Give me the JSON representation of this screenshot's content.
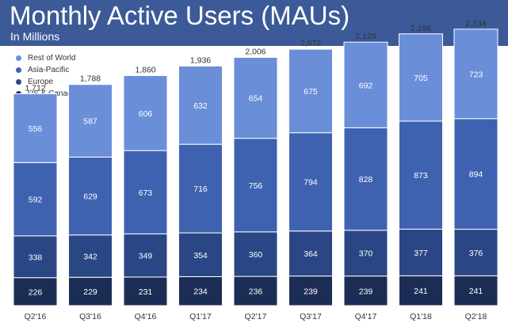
{
  "header": {
    "title": "Monthly Active Users (MAUs)",
    "subtitle": "In Millions"
  },
  "colors": {
    "header_bg": "#3c5a98",
    "rest_of_world": "#6b8ed9",
    "asia_pacific": "#3f62b0",
    "europe": "#2a4684",
    "us_canada": "#1c2d55"
  },
  "chart_data": {
    "type": "bar",
    "stacked": true,
    "title": "Monthly Active Users (MAUs)",
    "subtitle": "In Millions",
    "xlabel": "",
    "ylabel": "",
    "categories": [
      "Q2'16",
      "Q3'16",
      "Q4'16",
      "Q1'17",
      "Q2'17",
      "Q3'17",
      "Q4'17",
      "Q1'18",
      "Q2'18"
    ],
    "totals": [
      "1,712",
      "1,788",
      "1,860",
      "1,936",
      "2,006",
      "2,072",
      "2,129",
      "2,196",
      "2,234"
    ],
    "series": [
      {
        "name": "US & Canada",
        "color": "#1c2d55",
        "values": [
          226,
          229,
          231,
          234,
          236,
          239,
          239,
          241,
          241
        ]
      },
      {
        "name": "Europe",
        "color": "#2a4684",
        "values": [
          338,
          342,
          349,
          354,
          360,
          364,
          370,
          377,
          376
        ]
      },
      {
        "name": "Asia-Pacific",
        "color": "#3f62b0",
        "values": [
          592,
          629,
          673,
          716,
          756,
          794,
          828,
          873,
          894
        ]
      },
      {
        "name": "Rest of World",
        "color": "#6b8ed9",
        "values": [
          556,
          587,
          606,
          632,
          654,
          675,
          692,
          705,
          723
        ]
      }
    ],
    "legend": [
      "Rest of World",
      "Asia-Pacific",
      "Europe",
      "US & Canada"
    ],
    "ylim": [
      0,
      2300
    ],
    "grid": false
  }
}
